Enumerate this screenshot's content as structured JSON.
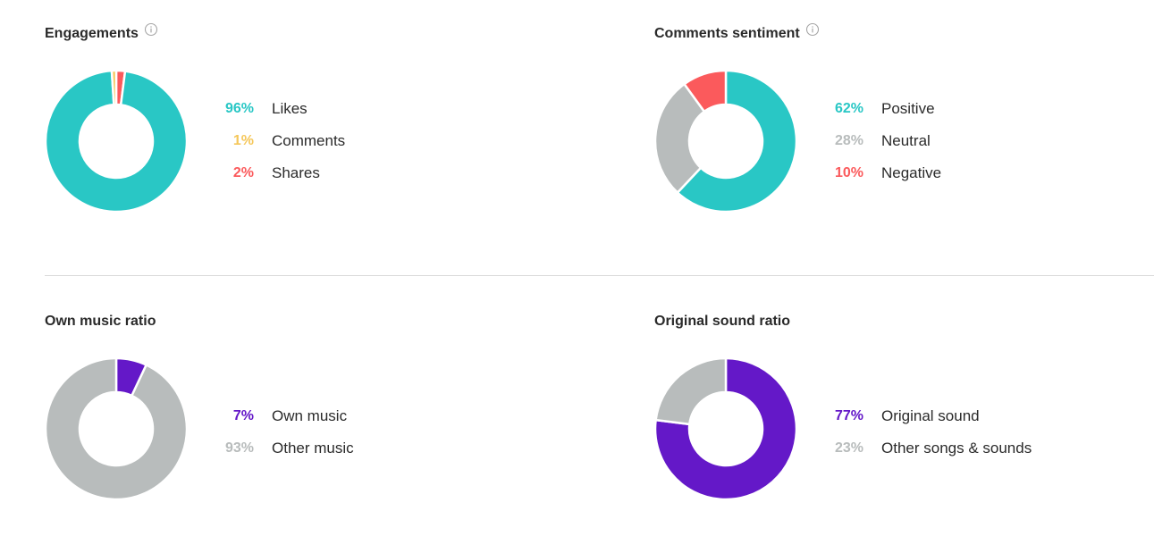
{
  "colors": {
    "teal": "#29c7c5",
    "yellow": "#f5c75a",
    "red": "#fb5a5c",
    "gray": "#b8bcbc",
    "purple": "#6418c8",
    "text": "#2b2b2b"
  },
  "chart_data": [
    {
      "type": "pie",
      "title": "Engagements",
      "has_info_icon": true,
      "slices": [
        {
          "label": "Likes",
          "value": 96,
          "pct_text": "96%",
          "color": "#29c7c5"
        },
        {
          "label": "Comments",
          "value": 1,
          "pct_text": "1%",
          "color": "#f5c75a"
        },
        {
          "label": "Shares",
          "value": 2,
          "pct_text": "2%",
          "color": "#fb5a5c"
        }
      ],
      "donut_order": [
        2,
        0,
        1
      ],
      "start_angle_deg": 0,
      "legend_placement": "right"
    },
    {
      "type": "pie",
      "title": "Comments sentiment",
      "has_info_icon": true,
      "slices": [
        {
          "label": "Positive",
          "value": 62,
          "pct_text": "62%",
          "color": "#29c7c5"
        },
        {
          "label": "Neutral",
          "value": 28,
          "pct_text": "28%",
          "color": "#b8bcbc"
        },
        {
          "label": "Negative",
          "value": 10,
          "pct_text": "10%",
          "color": "#fb5a5c"
        }
      ],
      "donut_order": [
        0,
        1,
        2
      ],
      "start_angle_deg": 0,
      "legend_placement": "right"
    },
    {
      "type": "pie",
      "title": "Own music ratio",
      "has_info_icon": false,
      "slices": [
        {
          "label": "Own music",
          "value": 7,
          "pct_text": "7%",
          "color": "#6418c8"
        },
        {
          "label": "Other music",
          "value": 93,
          "pct_text": "93%",
          "color": "#b8bcbc"
        }
      ],
      "donut_order": [
        0,
        1
      ],
      "start_angle_deg": 0,
      "legend_placement": "right"
    },
    {
      "type": "pie",
      "title": "Original sound ratio",
      "has_info_icon": false,
      "slices": [
        {
          "label": "Original sound",
          "value": 77,
          "pct_text": "77%",
          "color": "#6418c8"
        },
        {
          "label": "Other songs & sounds",
          "value": 23,
          "pct_text": "23%",
          "color": "#b8bcbc"
        }
      ],
      "donut_order": [
        0,
        1
      ],
      "start_angle_deg": 0,
      "legend_placement": "right"
    }
  ]
}
